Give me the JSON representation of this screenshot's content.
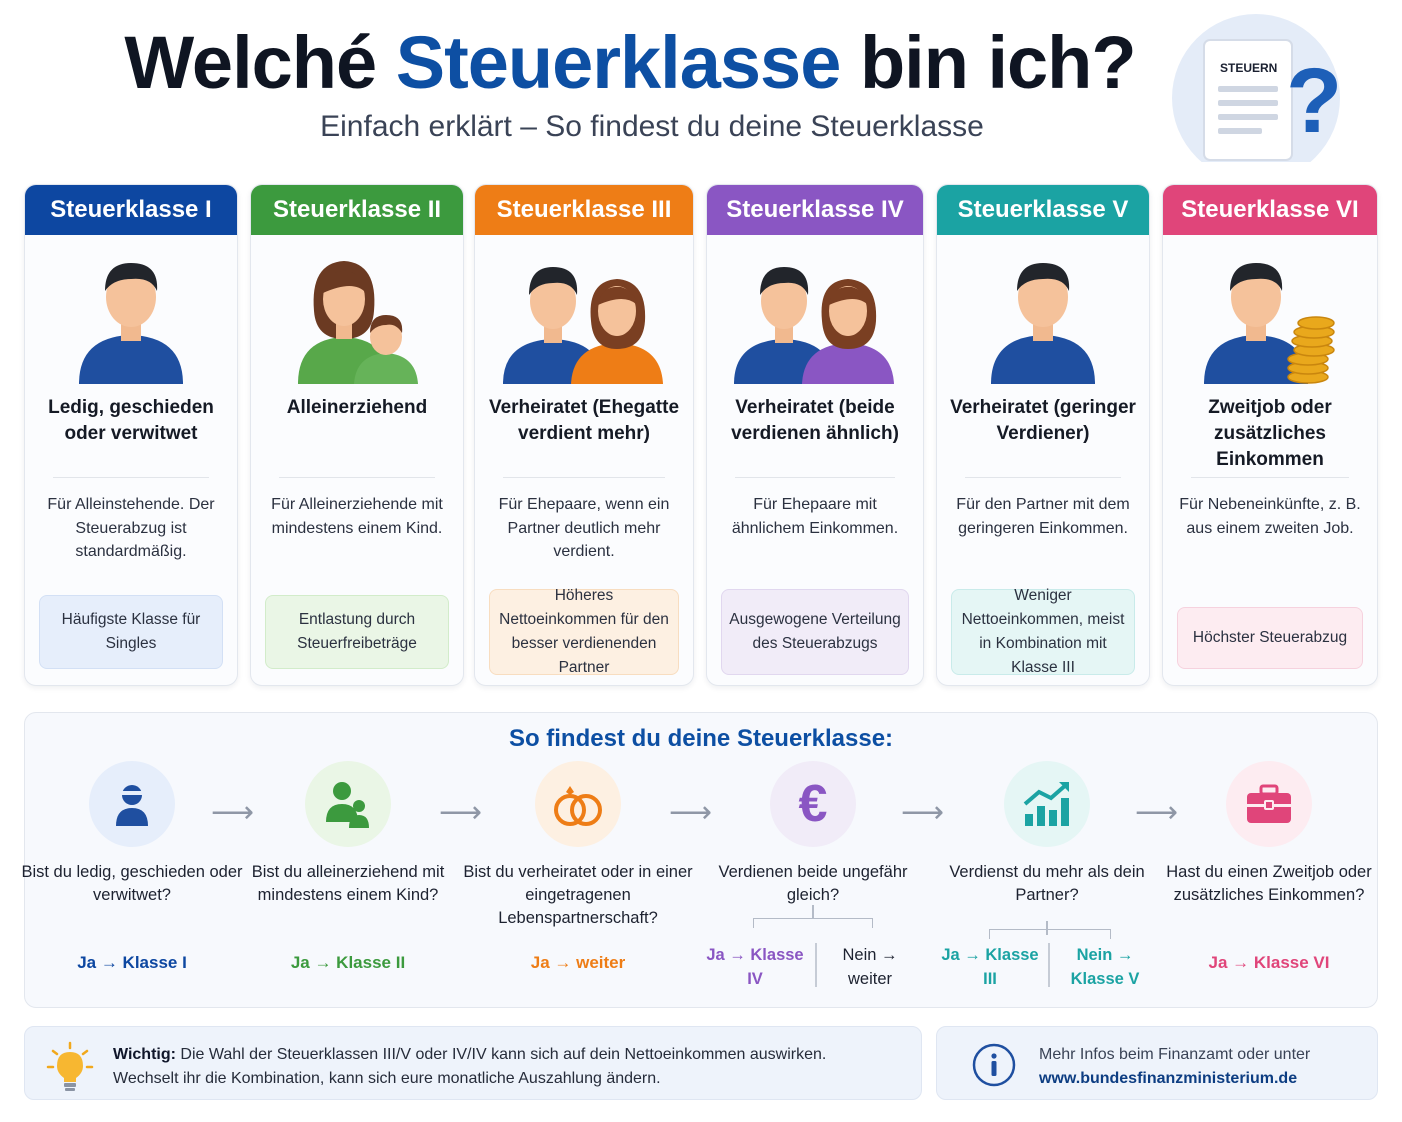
{
  "header": {
    "title_part1": "Welché",
    "title_accent": "Steuerklasse",
    "title_part2": "bin ich?",
    "subtitle": "Einfach erklärt – So findest du deine Steuerklasse",
    "doc_label": "STEUERN",
    "doc_icon": "tax-document-question-icon"
  },
  "classes": [
    {
      "head": "Steuerklasse I",
      "color": "#0d47a1",
      "title": "Ledig, geschieden oder verwitwet",
      "desc": "Für Alleinstehende. Der Steuerabzug ist standardmäßig.",
      "tag": "Häufigste Klasse für Singles",
      "tag_bg": "#e6eefb",
      "tag_border": "#d3e0f5",
      "figure": "single-man-icon"
    },
    {
      "head": "Steuerklasse II",
      "color": "#3c9a3e",
      "title": "Alleinerziehend",
      "desc": "Für Alleinerziehende mit mindestens einem Kind.",
      "tag": "Entlastung durch Steuerfreibeträge",
      "tag_bg": "#eaf6e6",
      "tag_border": "#d2ecca",
      "figure": "mother-child-icon"
    },
    {
      "head": "Steuerklasse III",
      "color": "#ee7d16",
      "title": "Verheiratet (Ehegatte verdient mehr)",
      "desc": "Für Ehepaare, wenn ein Partner deutlich mehr verdient.",
      "tag": "Höheres Nettoeinkommen für den besser verdienenden Partner",
      "tag_bg": "#fdf0e2",
      "tag_border": "#f8ddc0",
      "figure": "couple-icon"
    },
    {
      "head": "Steuerklasse IV",
      "color": "#8a56c3",
      "title": "Verheiratet (beide verdienen ähnlich)",
      "desc": "Für Ehepaare mit ähnlichem Einkommen.",
      "tag": "Ausgewogene Verteilung des Steuerabzugs",
      "tag_bg": "#f1ecf8",
      "tag_border": "#e1d7ef",
      "figure": "equal-couple-icon"
    },
    {
      "head": "Steuerklasse V",
      "color": "#1ba3a3",
      "title": "Verheiratet (geringer Verdiener)",
      "desc": "Für den Partner mit dem geringeren Einkommen.",
      "tag": "Weniger Nettoeinkommen, meist in Kombination mit Klasse III",
      "tag_bg": "#e5f6f5",
      "tag_border": "#c9ebea",
      "figure": "single-man-icon"
    },
    {
      "head": "Steuerklasse VI",
      "color": "#e0457a",
      "title": "Zweitjob oder zusätzliches Einkommen",
      "desc": "Für Nebeneinkünfte, z. B. aus einem zweiten Job.",
      "tag": "Höchster Steuerabzug",
      "tag_bg": "#fdecf1",
      "tag_border": "#f6d2de",
      "figure": "man-coins-icon"
    }
  ],
  "flow": {
    "title": "So findest du deine Steuerklasse:",
    "steps": [
      {
        "question": "Bist du ledig, geschieden oder verwitwet?",
        "answer": "Ja → Klasse I",
        "color": "#0d47a1",
        "icon": "person-icon"
      },
      {
        "question": "Bist du alleinerziehend mit mindestens einem Kind?",
        "answer": "Ja → Klasse II",
        "color": "#3c9a3e",
        "icon": "parent-child-icon"
      },
      {
        "question": "Bist du verheiratet oder in einer eingetragenen Lebenspartnerschaft?",
        "answer": "Ja → weiter",
        "color": "#ee7d16",
        "icon": "rings-icon"
      },
      {
        "question": "Verdienen beide ungefähr gleich?",
        "yes": "Ja → Klasse IV",
        "no": "Nein → weiter",
        "color": "#8a56c3",
        "icon": "euro-icon"
      },
      {
        "question": "Verdienst du mehr als dein Partner?",
        "yes": "Ja → Klasse III",
        "no": "Nein → Klasse V",
        "color": "#1ba3a3",
        "icon": "growth-chart-icon"
      },
      {
        "question": "Hast du einen Zweitjob oder zusätzliches Einkommen?",
        "answer": "Ja → Klasse VI",
        "color": "#e0457a",
        "icon": "briefcase-icon"
      }
    ]
  },
  "note": {
    "label": "Wichtig:",
    "text1": "Die Wahl der Steuerklassen III/V oder IV/IV kann sich auf dein Nettoeinkommen auswirken.",
    "text2": "Wechselt ihr die Kombination, kann sich eure monatliche Auszahlung ändern.",
    "icon": "lightbulb-icon"
  },
  "info": {
    "text": "Mehr Infos beim Finanzamt oder unter",
    "url": "www.bundesfinanzministerium.de",
    "icon": "info-icon"
  }
}
